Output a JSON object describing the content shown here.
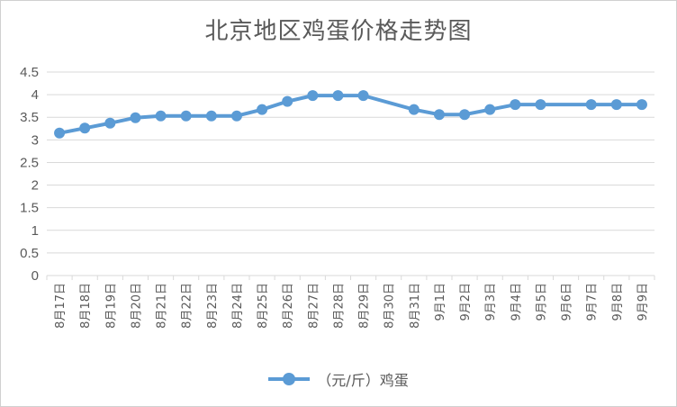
{
  "chart_data": {
    "type": "line",
    "title": "北京地区鸡蛋价格走势图",
    "categories": [
      "8月17日",
      "8月18日",
      "8月19日",
      "8月20日",
      "8月21日",
      "8月22日",
      "8月23日",
      "8月24日",
      "8月25日",
      "8月26日",
      "8月27日",
      "8月28日",
      "8月29日",
      "8月30日",
      "8月31日",
      "9月1日",
      "9月2日",
      "9月3日",
      "9月4日",
      "9月5日",
      "9月6日",
      "9月7日",
      "9月8日",
      "9月9日"
    ],
    "series": [
      {
        "name": "（元/斤）鸡蛋",
        "color": "#5b9bd5",
        "values": [
          3.15,
          3.26,
          3.37,
          3.49,
          3.53,
          3.53,
          3.53,
          3.53,
          3.67,
          3.85,
          3.98,
          3.98,
          3.98,
          null,
          3.67,
          3.56,
          3.56,
          3.67,
          3.78,
          3.78,
          null,
          3.78,
          3.78,
          3.78
        ]
      }
    ],
    "ylim": [
      0,
      4.5
    ],
    "yticks": [
      "0",
      "0.5",
      "1",
      "1.5",
      "2",
      "2.5",
      "3",
      "3.5",
      "4",
      "4.5"
    ],
    "grid": true,
    "legend": "bottom"
  }
}
